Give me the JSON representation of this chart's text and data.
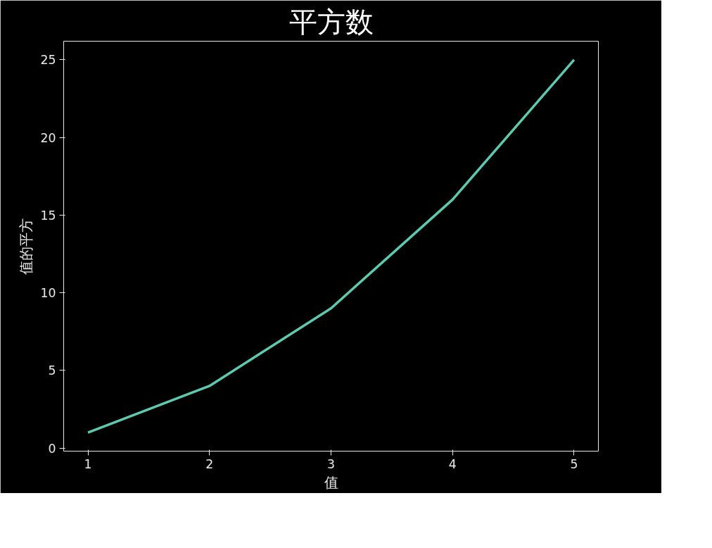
{
  "chart_data": {
    "type": "line",
    "title": "平方数",
    "xlabel": "值",
    "ylabel": "值的平方",
    "x": [
      1,
      2,
      3,
      4,
      5
    ],
    "series": [
      {
        "color": "#5fc9b0",
        "values": [
          1,
          4,
          9,
          16,
          25
        ]
      }
    ],
    "xlim": [
      0.8,
      5.2
    ],
    "ylim": [
      -0.2,
      26.2
    ],
    "xticks": [
      1,
      2,
      3,
      4,
      5
    ],
    "yticks": [
      0,
      5,
      10,
      15,
      20,
      25
    ],
    "grid": false,
    "marker": "none",
    "line_style": "solid"
  }
}
